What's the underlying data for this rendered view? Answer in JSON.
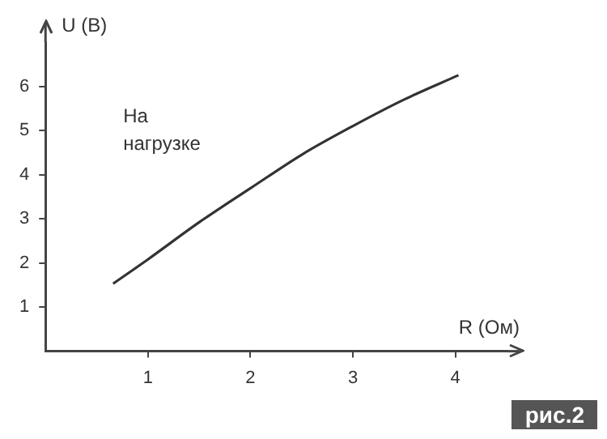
{
  "chart_data": {
    "type": "line",
    "xlabel": "R (Ом)",
    "ylabel": "U (B)",
    "x": [
      0.66,
      1,
      1.5,
      2,
      2.5,
      3,
      3.5,
      4.03
    ],
    "series": [
      {
        "color": "#333333",
        "values": [
          1.53,
          2.08,
          2.92,
          3.69,
          4.45,
          5.1,
          5.7,
          6.25
        ]
      }
    ],
    "xlim": [
      0,
      4.5
    ],
    "xticks": [
      1,
      2,
      3,
      4
    ],
    "ylim": [
      0,
      7
    ],
    "yticks": [
      1,
      2,
      3,
      4,
      5,
      6
    ],
    "grid": false,
    "legend": false,
    "marker": "none",
    "line_style": "solid",
    "annotations": [
      "На нагрузке",
      "рис.2"
    ]
  }
}
